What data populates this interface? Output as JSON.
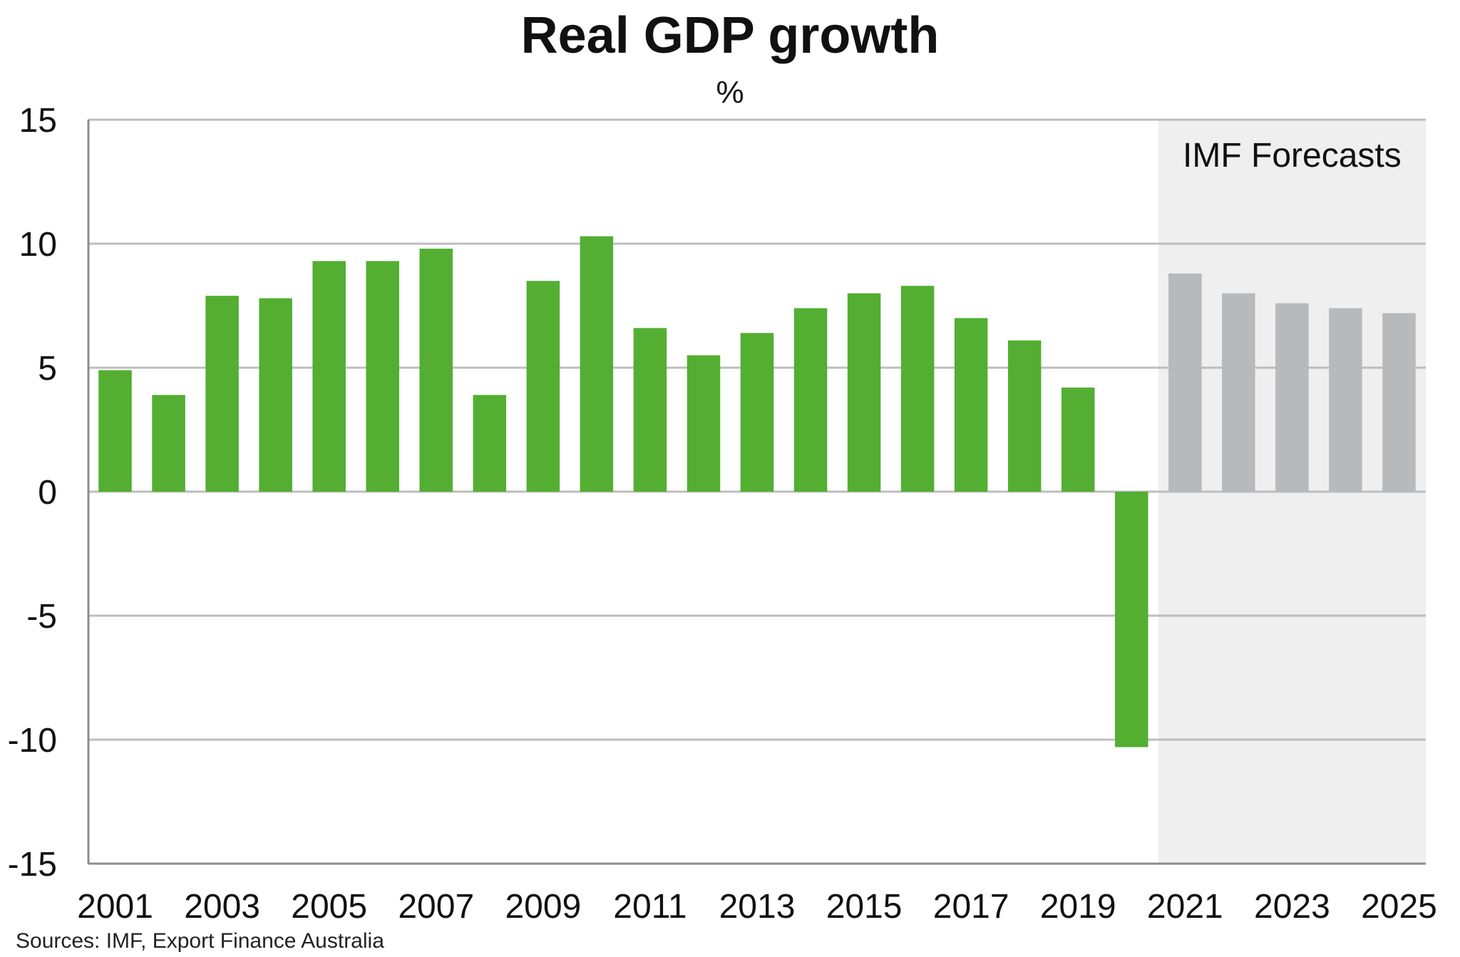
{
  "chart_data": {
    "type": "bar",
    "title": "Real GDP growth",
    "subtitle": "%",
    "xlabel": "",
    "ylabel": "",
    "categories": [
      "2001",
      "2002",
      "2003",
      "2004",
      "2005",
      "2006",
      "2007",
      "2008",
      "2009",
      "2010",
      "2011",
      "2012",
      "2013",
      "2014",
      "2015",
      "2016",
      "2017",
      "2018",
      "2019",
      "2020",
      "2021",
      "2022",
      "2023",
      "2024",
      "2025"
    ],
    "x_tick_labels": [
      "2001",
      "2003",
      "2005",
      "2007",
      "2009",
      "2011",
      "2013",
      "2015",
      "2017",
      "2019",
      "2021",
      "2023",
      "2025"
    ],
    "series": [
      {
        "name": "",
        "values": [
          4.9,
          3.9,
          7.9,
          7.8,
          9.3,
          9.3,
          9.8,
          3.9,
          8.5,
          10.3,
          6.6,
          5.5,
          6.4,
          7.4,
          8.0,
          8.3,
          7.0,
          6.1,
          4.2,
          -10.3,
          8.8,
          8.0,
          7.6,
          7.4,
          7.2
        ]
      }
    ],
    "forecast_start": "2021",
    "forecast_label": "IMF Forecasts",
    "ylim": [
      -15,
      15
    ],
    "y_ticks": [
      -15,
      -10,
      -5,
      0,
      5,
      10,
      15
    ],
    "grid": true,
    "colors": {
      "actual": "#53ae32",
      "forecast": "#b8b9bb",
      "forecast_band": "#efefef",
      "gridline": "#bdbdbd",
      "axis": "#8c8c8c"
    }
  },
  "source_note": "Sources: IMF, Export Finance Australia"
}
